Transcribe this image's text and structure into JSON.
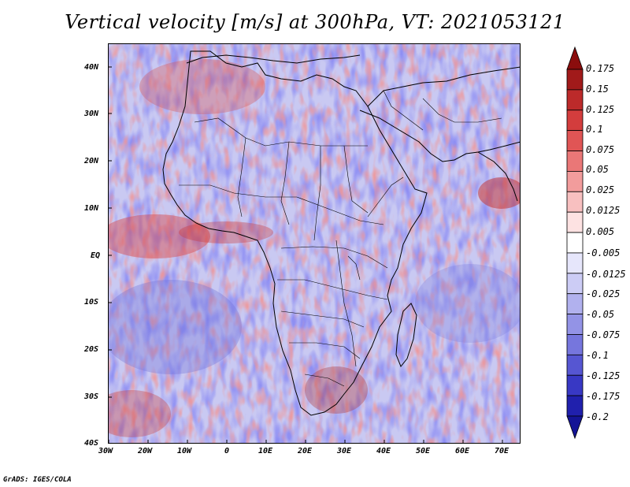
{
  "title": "Vertical velocity [m/s] at 300hPa, VT: 2021053121",
  "credit": "GrADS: IGES/COLA",
  "y_ticks": [
    "40N",
    "30N",
    "20N",
    "10N",
    "EQ",
    "10S",
    "20S",
    "30S",
    "40S"
  ],
  "x_ticks": [
    "30W",
    "20W",
    "10W",
    "0",
    "10E",
    "20E",
    "30E",
    "40E",
    "50E",
    "60E",
    "70E"
  ],
  "colorbar": {
    "labels": [
      "0.175",
      "0.15",
      "0.125",
      "0.1",
      "0.075",
      "0.05",
      "0.025",
      "0.0125",
      "0.005",
      "-0.005",
      "-0.0125",
      "-0.025",
      "-0.05",
      "-0.075",
      "-0.1",
      "-0.125",
      "-0.175",
      "-0.2"
    ],
    "colors": [
      "#8b0d0d",
      "#a11a1a",
      "#bc2a2a",
      "#d33d3d",
      "#e05555",
      "#ea7777",
      "#f29c9c",
      "#f8c0c0",
      "#fde2e2",
      "#ffffff",
      "#e6e6fb",
      "#ccccf5",
      "#b1b1ee",
      "#9393e6",
      "#7676dd",
      "#5656d2",
      "#3838c4",
      "#2020ad",
      "#141496"
    ]
  }
}
